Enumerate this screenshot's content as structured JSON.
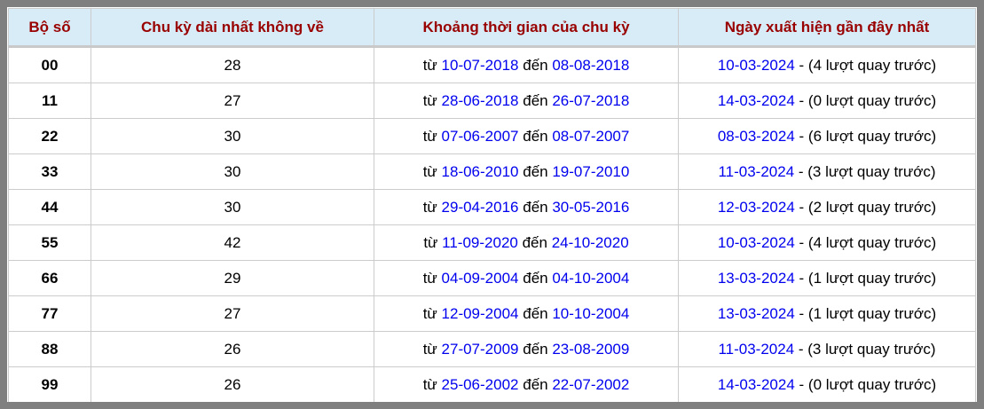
{
  "colors": {
    "frame_border": "#7f7f7f",
    "header_background": "#d7ecf6",
    "header_text": "#990000",
    "link_blue": "#0000ee",
    "cell_border": "#cccccc",
    "body_text": "#000000"
  },
  "table": {
    "headers": [
      "Bộ số",
      "Chu kỳ dài nhất không về",
      "Khoảng thời gian của chu kỳ",
      "Ngày xuất hiện gần đây nhất"
    ],
    "labels": {
      "from_label": "từ",
      "to_label": "đến"
    },
    "rows": [
      {
        "pair": "00",
        "cycle": "28",
        "from": "10-07-2018",
        "to": "08-08-2018",
        "recent_date": "10-03-2024",
        "recent_note": "- (4 lượt quay trước)"
      },
      {
        "pair": "11",
        "cycle": "27",
        "from": "28-06-2018",
        "to": "26-07-2018",
        "recent_date": "14-03-2024",
        "recent_note": "- (0 lượt quay trước)"
      },
      {
        "pair": "22",
        "cycle": "30",
        "from": "07-06-2007",
        "to": "08-07-2007",
        "recent_date": "08-03-2024",
        "recent_note": "- (6 lượt quay trước)"
      },
      {
        "pair": "33",
        "cycle": "30",
        "from": "18-06-2010",
        "to": "19-07-2010",
        "recent_date": "11-03-2024",
        "recent_note": "- (3 lượt quay trước)"
      },
      {
        "pair": "44",
        "cycle": "30",
        "from": "29-04-2016",
        "to": "30-05-2016",
        "recent_date": "12-03-2024",
        "recent_note": "- (2 lượt quay trước)"
      },
      {
        "pair": "55",
        "cycle": "42",
        "from": "11-09-2020",
        "to": "24-10-2020",
        "recent_date": "10-03-2024",
        "recent_note": "- (4 lượt quay trước)"
      },
      {
        "pair": "66",
        "cycle": "29",
        "from": "04-09-2004",
        "to": "04-10-2004",
        "recent_date": "13-03-2024",
        "recent_note": "- (1 lượt quay trước)"
      },
      {
        "pair": "77",
        "cycle": "27",
        "from": "12-09-2004",
        "to": "10-10-2004",
        "recent_date": "13-03-2024",
        "recent_note": "- (1 lượt quay trước)"
      },
      {
        "pair": "88",
        "cycle": "26",
        "from": "27-07-2009",
        "to": "23-08-2009",
        "recent_date": "11-03-2024",
        "recent_note": "- (3 lượt quay trước)"
      },
      {
        "pair": "99",
        "cycle": "26",
        "from": "25-06-2002",
        "to": "22-07-2002",
        "recent_date": "14-03-2024",
        "recent_note": "- (0 lượt quay trước)"
      }
    ]
  }
}
